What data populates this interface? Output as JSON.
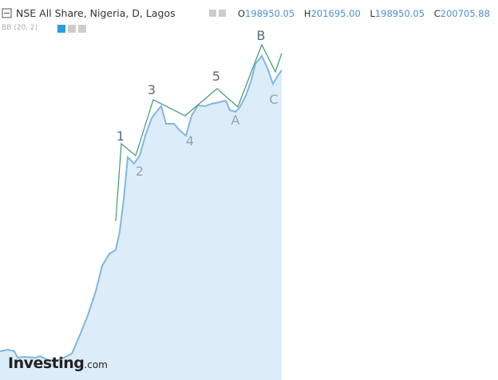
{
  "header": {
    "title": "NSE All Share, Nigeria, D, Lagos",
    "ohlc": [
      {
        "key": "O",
        "value": "198950.05"
      },
      {
        "key": "H",
        "value": "201695.00"
      },
      {
        "key": "L",
        "value": "198950.05"
      },
      {
        "key": "C",
        "value": "200705.88"
      }
    ],
    "indicator": "BB (20, 2)"
  },
  "wave_labels": [
    "1",
    "2",
    "3",
    "4",
    "5",
    "A",
    "B",
    "C"
  ],
  "logo": {
    "brand": "Investing",
    "suffix": ".com"
  }
}
